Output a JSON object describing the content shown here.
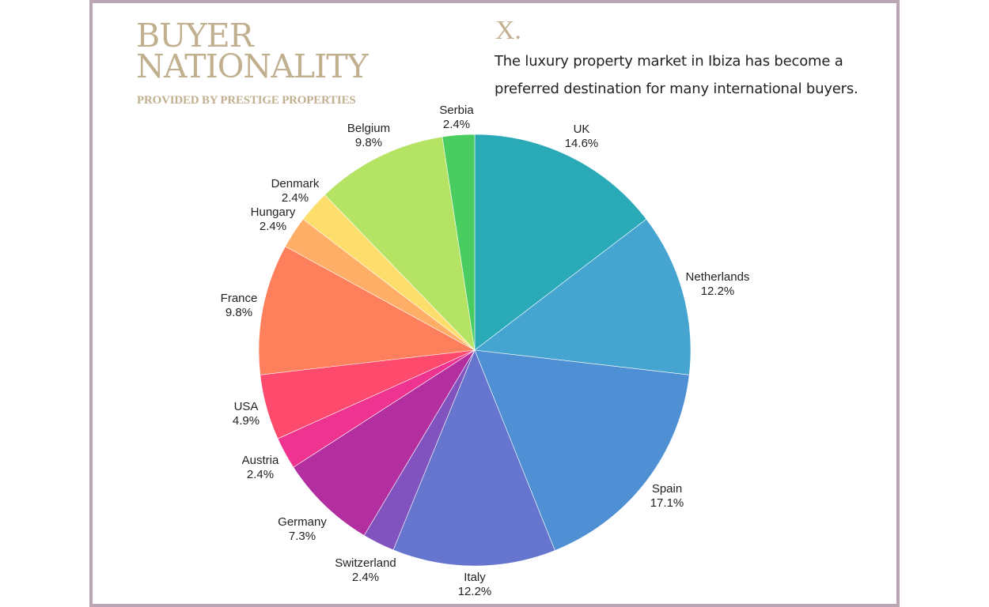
{
  "header": {
    "title_line1": "BUYER",
    "title_line2": "NATIONALITY",
    "subtitle": "PROVIDED BY PRESTIGE PROPERTIES",
    "logo": "X.",
    "description_line1": "The luxury property market in Ibiza has become a",
    "description_line2": "preferred destination for many international buyers."
  },
  "colors": {
    "frame_border": "#b9a6b3",
    "title_gold": "#c1b08f"
  },
  "chart_data": {
    "type": "pie",
    "title": "Buyer Nationality",
    "subtitle": "Provided by Prestige Properties",
    "start_angle": "12 o'clock",
    "direction": "clockwise",
    "categories": [
      "UK",
      "Netherlands",
      "Spain",
      "Italy",
      "Switzerland",
      "Germany",
      "Austria",
      "USA",
      "France",
      "Hungary",
      "Denmark",
      "Belgium",
      "Serbia"
    ],
    "values": [
      14.6,
      12.2,
      17.1,
      12.2,
      2.4,
      7.3,
      2.4,
      4.9,
      9.8,
      2.4,
      2.4,
      9.8,
      2.4
    ],
    "labels": [
      "14.6%",
      "12.2%",
      "17.1%",
      "12.2%",
      "2.4%",
      "7.3%",
      "2.4%",
      "4.9%",
      "9.8%",
      "2.4%",
      "2.4%",
      "9.8%",
      "2.4%"
    ],
    "colors": [
      "#2aaab6",
      "#45a5d0",
      "#4f90d4",
      "#6675cd",
      "#8153bf",
      "#b32fa0",
      "#ee3490",
      "#fd4a6d",
      "#fd7f5c",
      "#feae67",
      "#fddd6b",
      "#b5e363",
      "#4acd60"
    ],
    "legend": "none (labels outside slices)"
  }
}
